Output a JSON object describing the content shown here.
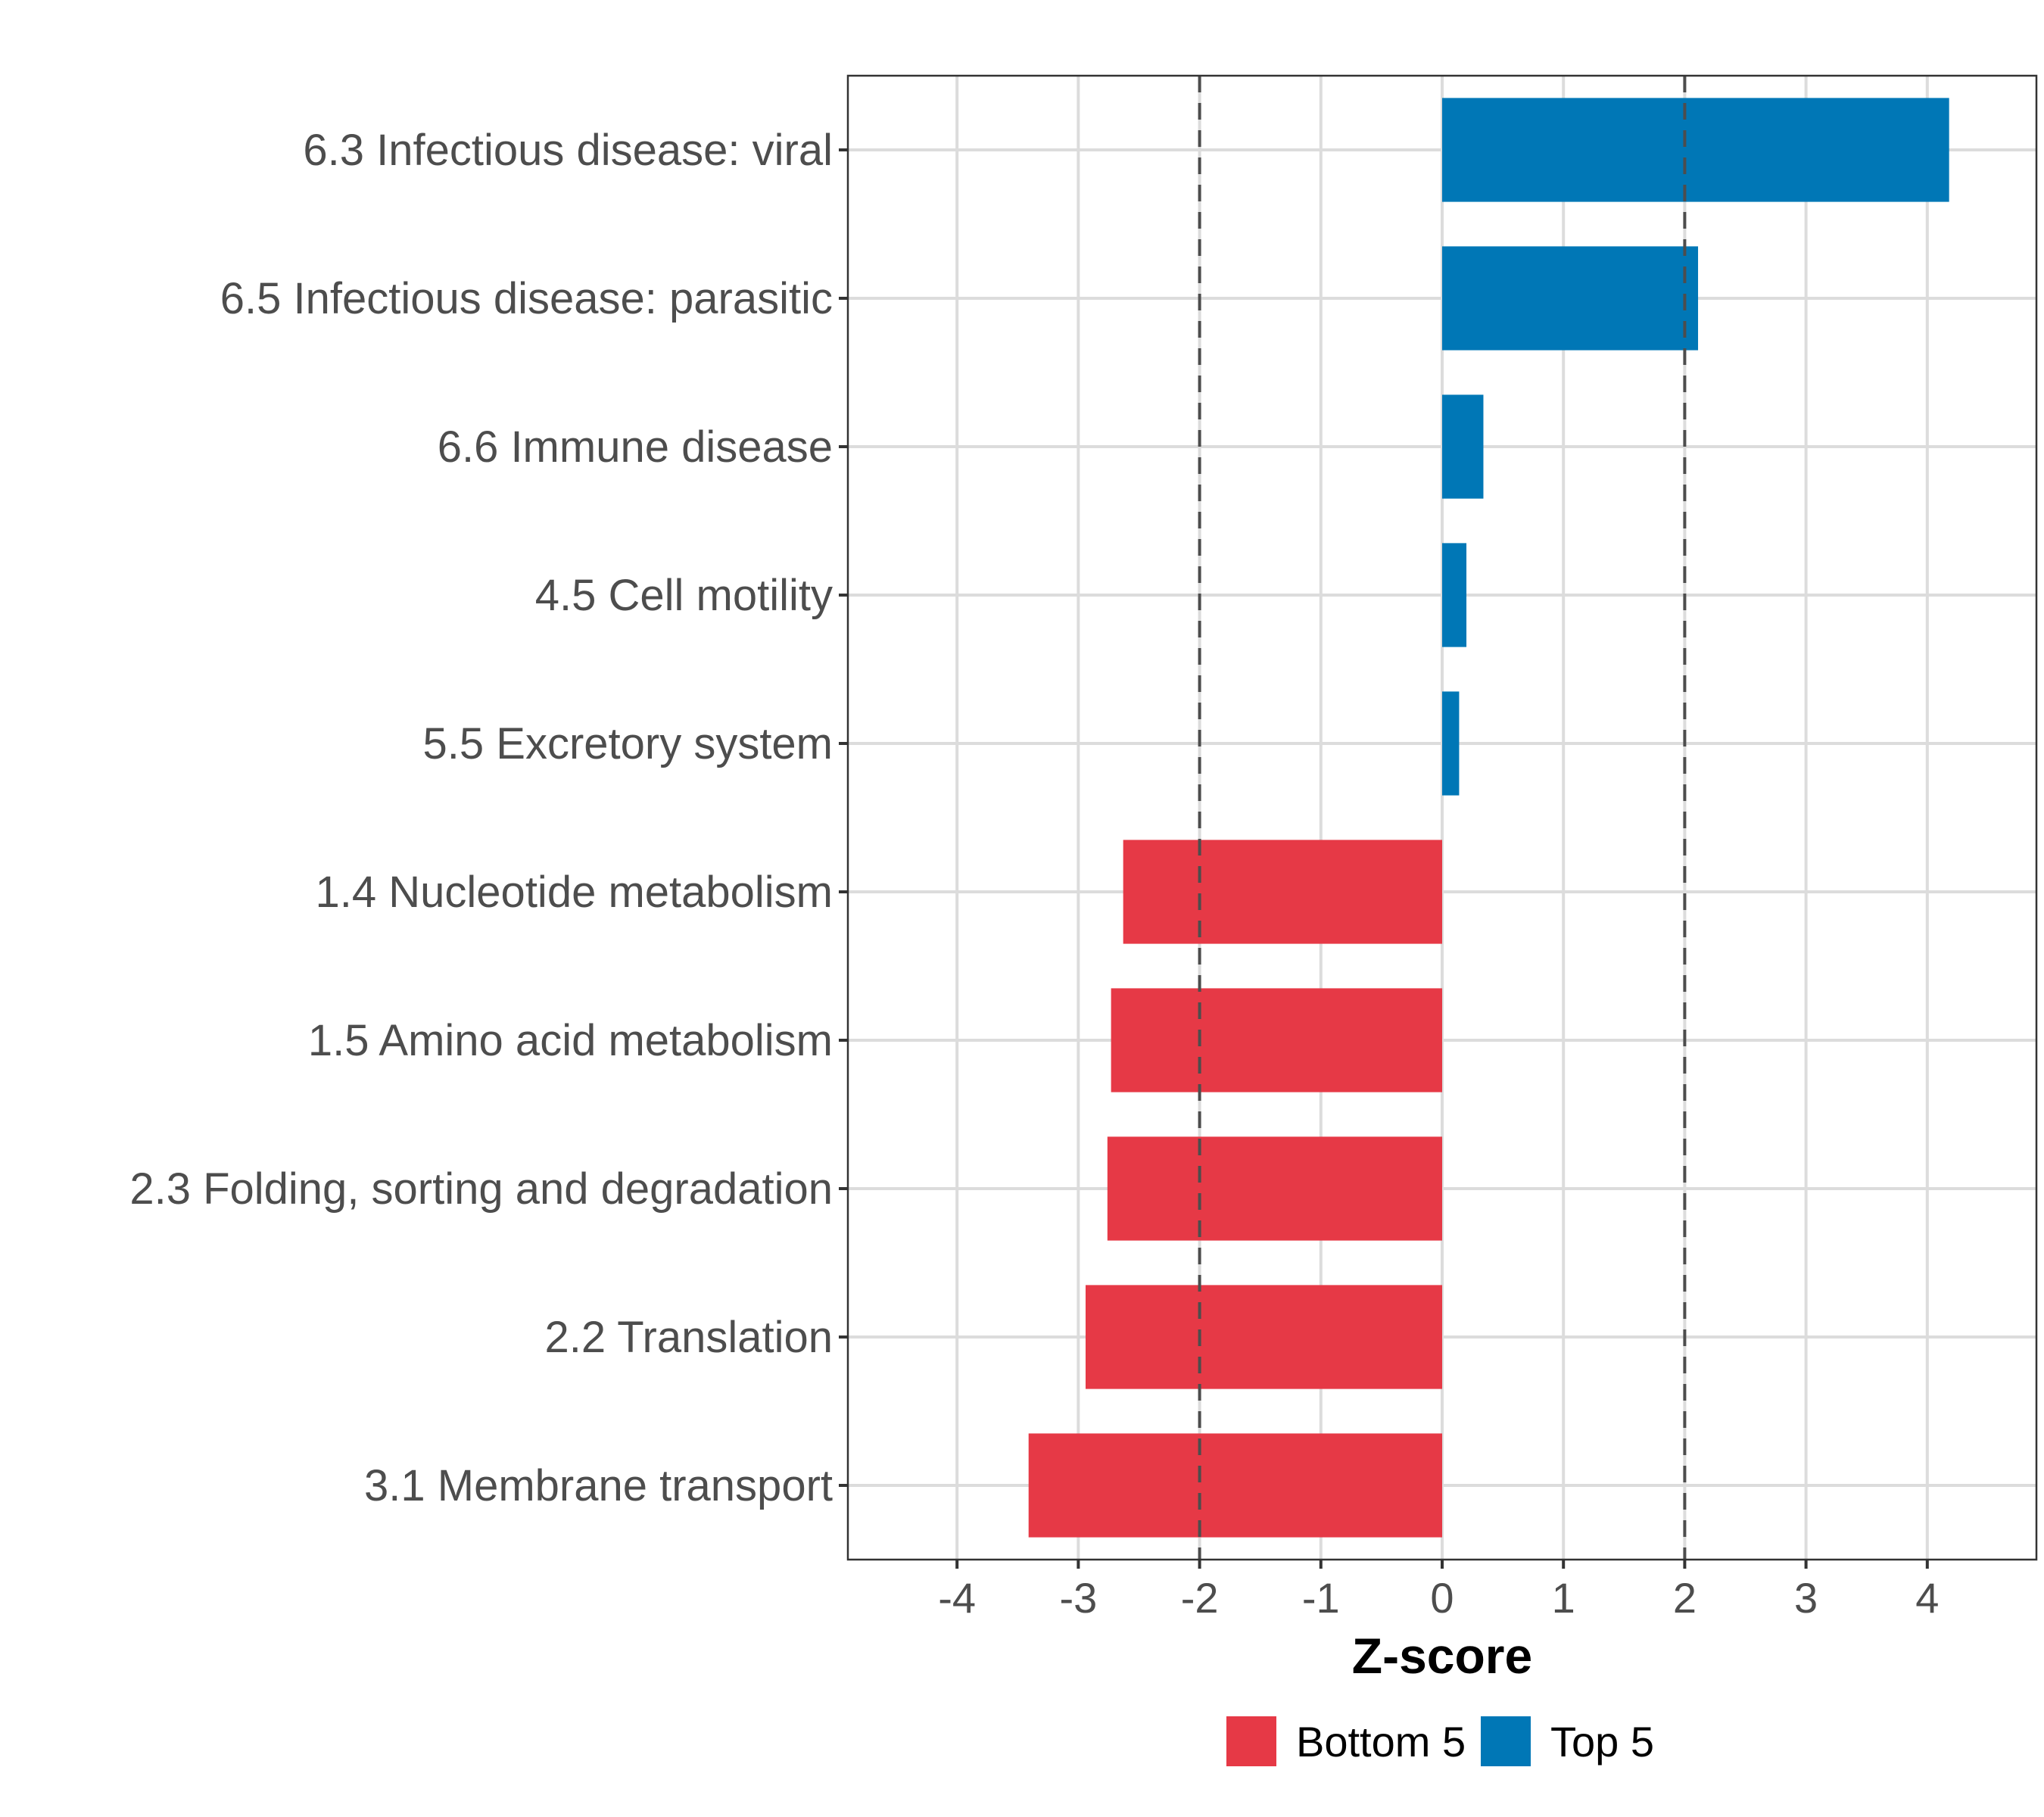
{
  "chart_data": {
    "type": "bar",
    "orientation": "horizontal",
    "title": "",
    "xlabel": "Z-score",
    "ylabel": "",
    "xlim": [
      -4.9,
      4.9
    ],
    "xticks": [
      -4,
      -3,
      -2,
      -1,
      0,
      1,
      2,
      3,
      4
    ],
    "reference_lines": [
      -2,
      2
    ],
    "grid": true,
    "categories": [
      "6.3 Infectious disease: viral",
      "6.5 Infectious disease: parasitic",
      "6.6 Immune disease",
      "4.5 Cell motility",
      "5.5 Excretory system",
      "1.4 Nucleotide metabolism",
      "1.5 Amino acid metabolism",
      "2.3 Folding, sorting and degradation",
      "2.2 Translation",
      "3.1 Membrane transport"
    ],
    "values": [
      4.18,
      2.11,
      0.34,
      0.2,
      0.14,
      -2.63,
      -2.73,
      -2.76,
      -2.94,
      -3.41
    ],
    "groups": [
      "Top 5",
      "Top 5",
      "Top 5",
      "Top 5",
      "Top 5",
      "Bottom 5",
      "Bottom 5",
      "Bottom 5",
      "Bottom 5",
      "Bottom 5"
    ],
    "legend": {
      "position": "bottom",
      "entries": [
        {
          "label": "Bottom 5",
          "color": "#E63946"
        },
        {
          "label": "Top 5",
          "color": "#0077B6"
        }
      ]
    }
  }
}
